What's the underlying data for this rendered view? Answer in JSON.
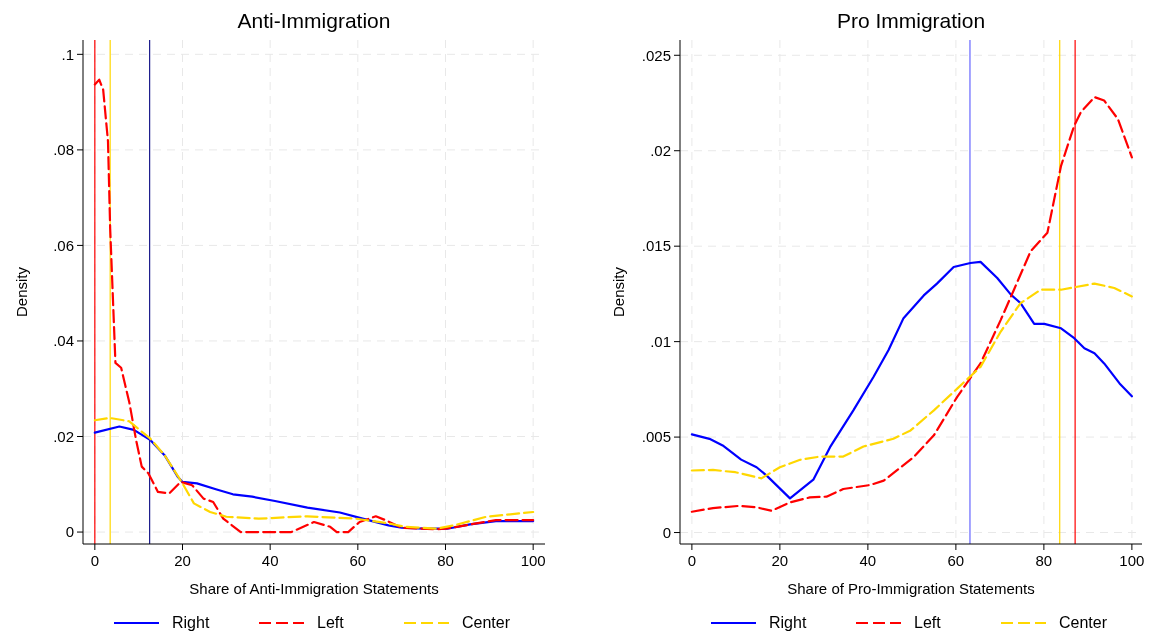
{
  "chart_data": [
    {
      "type": "line",
      "title": "Anti-Immigration",
      "xlabel": "Share of Anti-Immigration Statements",
      "ylabel": "Density",
      "xlim": [
        -2.7,
        102.7
      ],
      "ylim": [
        -0.0025,
        0.103
      ],
      "xticks": [
        0,
        20,
        40,
        60,
        80,
        100
      ],
      "yticks": [
        0,
        {
          "value": 0.02,
          "label": ".02"
        },
        {
          "value": 0.04,
          "label": ".04"
        },
        {
          "value": 0.06,
          "label": ".06"
        },
        {
          "value": 0.08,
          "label": ".08"
        },
        {
          "value": 0.1,
          "label": ".1"
        }
      ],
      "grid": true,
      "legend": "bottom",
      "marker": "none",
      "series": [
        {
          "name": "Right",
          "color": "#0000ff",
          "line_style": "solid",
          "x": [
            0,
            5.6,
            8.9,
            12.6,
            15.9,
            18.9,
            20,
            23.3,
            27.8,
            31.5,
            35.9,
            41.1,
            48.5,
            55.9,
            61.1,
            67,
            70,
            75,
            80.4,
            85.6,
            91.5,
            100
          ],
          "values": [
            0.0208,
            0.0221,
            0.0214,
            0.0193,
            0.0161,
            0.0116,
            0.0105,
            0.0102,
            0.0089,
            0.0079,
            0.0074,
            0.0065,
            0.0051,
            0.0041,
            0.0028,
            0.0014,
            0.0009,
            0.0007,
            0.0007,
            0.0016,
            0.0023,
            0.0023
          ]
        },
        {
          "name": "Left",
          "color": "#ff0000",
          "line_style": "dashed",
          "x": [
            0,
            1,
            1.9,
            3,
            3.5,
            4.1,
            4.7,
            6,
            7.9,
            9.4,
            10.7,
            12.2,
            14.4,
            17,
            19.6,
            22.2,
            24.8,
            27,
            29.3,
            33.3,
            44.8,
            50,
            53.7,
            55.2,
            57.8,
            60.4,
            64.1,
            66.3,
            70,
            78,
            80,
            91.5,
            100
          ],
          "values": [
            0.0937,
            0.0947,
            0.0926,
            0.0818,
            0.0635,
            0.0495,
            0.0354,
            0.0344,
            0.027,
            0.0193,
            0.0137,
            0.0123,
            0.0084,
            0.0081,
            0.0105,
            0.0098,
            0.007,
            0.0063,
            0.0028,
            0,
            0,
            0.0021,
            0.0011,
            0,
            0,
            0.0021,
            0.0033,
            0.0025,
            0.0009,
            0.0006,
            0.0007,
            0.0025,
            0.0025
          ]
        },
        {
          "name": "Center",
          "color": "#ffd700",
          "line_style": "dashed",
          "x": [
            0,
            3.3,
            7.8,
            12.6,
            15.9,
            20,
            22.6,
            26.3,
            30,
            37.4,
            48.5,
            59.6,
            67,
            70.7,
            78,
            81.9,
            89.3,
            100
          ],
          "values": [
            0.0234,
            0.0239,
            0.0232,
            0.0196,
            0.0161,
            0.0102,
            0.006,
            0.0042,
            0.0032,
            0.0028,
            0.0033,
            0.0028,
            0.0018,
            0.0011,
            0.0007,
            0.0014,
            0.0032,
            0.0042
          ]
        }
      ],
      "ref_lines": [
        {
          "axis": "x",
          "value": 0,
          "color": "#ff0000"
        },
        {
          "axis": "x",
          "value": 3.5,
          "color": "#ffd700"
        },
        {
          "axis": "x",
          "value": 12.5,
          "color": "#1a1a8c"
        }
      ]
    },
    {
      "type": "line",
      "title": "Pro Immigration",
      "xlabel": "Share of Pro-Immigration Statements",
      "ylabel": "Density",
      "xlim": [
        -2.7,
        102.3
      ],
      "ylim": [
        -0.0006,
        0.0258
      ],
      "xticks": [
        0,
        20,
        40,
        60,
        80,
        100
      ],
      "yticks": [
        0,
        {
          "value": 0.005,
          "label": ".005"
        },
        {
          "value": 0.01,
          "label": ".01"
        },
        {
          "value": 0.015,
          "label": ".015"
        },
        {
          "value": 0.02,
          "label": ".02"
        },
        {
          "value": 0.025,
          "label": ".025"
        }
      ],
      "grid": true,
      "legend": "bottom",
      "marker": "none",
      "series": [
        {
          "name": "Right",
          "color": "#0000ff",
          "line_style": "solid",
          "x": [
            0,
            4,
            7,
            11.2,
            14.7,
            17,
            22.3,
            27.6,
            31.4,
            36.7,
            41.3,
            44.7,
            48.1,
            52.7,
            55.7,
            59.5,
            63.3,
            65.6,
            69.4,
            72.5,
            74.7,
            77.8,
            80.1,
            83.9,
            86.9,
            89.2,
            91.5,
            93.7,
            97.2,
            100
          ],
          "values": [
            0.00514,
            0.00491,
            0.00456,
            0.00382,
            0.00342,
            0.00298,
            0.00179,
            0.00277,
            0.00447,
            0.0064,
            0.00816,
            0.00956,
            0.01123,
            0.01242,
            0.01304,
            0.01391,
            0.01412,
            0.01418,
            0.01333,
            0.01246,
            0.01202,
            0.01093,
            0.01093,
            0.0107,
            0.01018,
            0.00965,
            0.00939,
            0.00886,
            0.00781,
            0.00714
          ]
        },
        {
          "name": "Left",
          "color": "#ff0000",
          "line_style": "dashed",
          "x": [
            0,
            4.8,
            10.9,
            14.7,
            18.1,
            22.3,
            26.8,
            30.6,
            34.4,
            40.5,
            43.6,
            50.4,
            55,
            60.3,
            65.6,
            70.2,
            73.2,
            77,
            80.8,
            83.9,
            86.9,
            88.4,
            91.5,
            93.7,
            96.8,
            100
          ],
          "values": [
            0.00109,
            0.00128,
            0.0014,
            0.00132,
            0.00114,
            0.00158,
            0.00184,
            0.00188,
            0.00228,
            0.00249,
            0.00272,
            0.00395,
            0.00509,
            0.00711,
            0.00886,
            0.01114,
            0.01272,
            0.01474,
            0.0157,
            0.01921,
            0.02132,
            0.02202,
            0.02281,
            0.02263,
            0.02167,
            0.01965
          ]
        },
        {
          "name": "Center",
          "color": "#ffd700",
          "line_style": "dashed",
          "x": [
            0,
            4.8,
            9.9,
            15.8,
            20,
            24.6,
            29.1,
            34.4,
            39,
            45.8,
            49.7,
            55,
            60.3,
            65.6,
            70.2,
            74.7,
            79.3,
            83.9,
            91.5,
            96,
            100
          ],
          "values": [
            0.00325,
            0.00328,
            0.00316,
            0.00284,
            0.00342,
            0.00381,
            0.00398,
            0.00398,
            0.00451,
            0.00491,
            0.00535,
            0.0064,
            0.00754,
            0.00868,
            0.01053,
            0.01202,
            0.01272,
            0.01272,
            0.01304,
            0.01281,
            0.01237
          ]
        }
      ],
      "ref_lines": [
        {
          "axis": "x",
          "value": 63.2,
          "color": "#6666ff"
        },
        {
          "axis": "x",
          "value": 83.6,
          "color": "#ffd700"
        },
        {
          "axis": "x",
          "value": 87.1,
          "color": "#ff0000"
        }
      ]
    }
  ]
}
